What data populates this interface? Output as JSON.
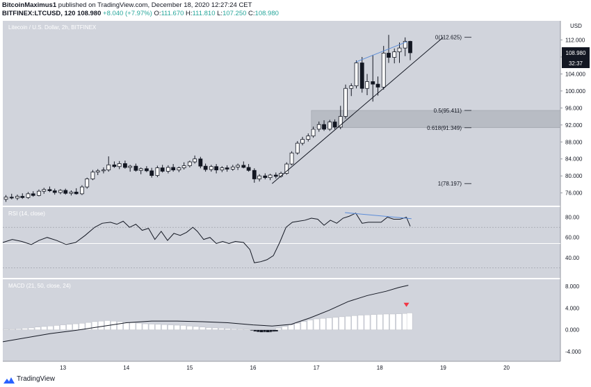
{
  "header": {
    "author": "BitcoinMaximus1",
    "published_text": "published on TradingView.com, December 18, 2020 12:27:24 CET",
    "symbol": "BITFINEX:LTCUSD, 120",
    "last": "108.980",
    "change": "+8.040 (+7.97%)",
    "open_label": "O:",
    "open": "111.670",
    "high_label": "H:",
    "high": "111.810",
    "low_label": "L:",
    "low": "107.250",
    "close_label": "C:",
    "close": "108.980"
  },
  "footer": {
    "brand": "TradingView"
  },
  "chart_data": {
    "type": "candlestick",
    "title": "Litecoin / U.S. Dollar, 2h, BITFINEX",
    "currency": "USD",
    "price_axis": {
      "ticks": [
        76,
        80,
        84,
        88,
        92,
        96,
        100,
        104,
        108,
        112
      ],
      "tick_labels": [
        "76.000",
        "80.000",
        "84.000",
        "88.000",
        "92.000",
        "96.000",
        "100.000",
        "104.000",
        "108.000",
        "112.000"
      ],
      "range": [
        73,
        116.5
      ]
    },
    "last_price_label": "108.980",
    "countdown_label": "32:37",
    "x_axis": {
      "tick_labels": [
        "13",
        "14",
        "15",
        "16",
        "17",
        "18",
        "19",
        "20"
      ],
      "tick_days": [
        13,
        14,
        15,
        16,
        17,
        18,
        19,
        20
      ],
      "range": [
        12.05,
        20.85
      ]
    },
    "fib_levels": [
      {
        "label": "0(112.625)",
        "price": 112.625
      },
      {
        "label": "0.5(95.411)",
        "price": 95.411
      },
      {
        "label": "0.618(91.349)",
        "price": 91.349
      },
      {
        "label": "1(78.197)",
        "price": 78.197
      }
    ],
    "fib_zone": {
      "from_day": 16.92,
      "top": 95.411,
      "bottom": 91.349
    },
    "support_line": {
      "x": [
        16.3,
        19.0
      ],
      "y": [
        78.197,
        112.625
      ]
    },
    "resistance_line": {
      "x": [
        17.62,
        18.43
      ],
      "y": [
        106.8,
        111.6
      ]
    },
    "candles": [
      {
        "t": 12.1,
        "o": 74.5,
        "h": 75.5,
        "l": 73.9,
        "c": 75.0
      },
      {
        "t": 12.19,
        "o": 75.0,
        "h": 75.8,
        "l": 74.5,
        "c": 74.8
      },
      {
        "t": 12.28,
        "o": 74.8,
        "h": 75.6,
        "l": 74.3,
        "c": 75.2
      },
      {
        "t": 12.36,
        "o": 75.2,
        "h": 75.9,
        "l": 74.6,
        "c": 74.9
      },
      {
        "t": 12.45,
        "o": 74.9,
        "h": 76.2,
        "l": 74.6,
        "c": 75.8
      },
      {
        "t": 12.53,
        "o": 75.8,
        "h": 76.4,
        "l": 75.1,
        "c": 75.4
      },
      {
        "t": 12.62,
        "o": 75.4,
        "h": 76.8,
        "l": 75.2,
        "c": 76.4
      },
      {
        "t": 12.7,
        "o": 76.4,
        "h": 77.2,
        "l": 75.8,
        "c": 76.8
      },
      {
        "t": 12.79,
        "o": 76.8,
        "h": 77.5,
        "l": 76.2,
        "c": 76.5
      },
      {
        "t": 12.87,
        "o": 76.5,
        "h": 77.0,
        "l": 75.6,
        "c": 76.1
      },
      {
        "t": 12.96,
        "o": 76.1,
        "h": 76.9,
        "l": 75.7,
        "c": 76.6
      },
      {
        "t": 13.04,
        "o": 76.6,
        "h": 77.0,
        "l": 75.6,
        "c": 75.9
      },
      {
        "t": 13.13,
        "o": 75.9,
        "h": 76.6,
        "l": 75.4,
        "c": 76.2
      },
      {
        "t": 13.21,
        "o": 76.2,
        "h": 77.1,
        "l": 75.6,
        "c": 75.8
      },
      {
        "t": 13.3,
        "o": 75.8,
        "h": 77.8,
        "l": 75.5,
        "c": 77.4
      },
      {
        "t": 13.38,
        "o": 77.4,
        "h": 79.6,
        "l": 77.0,
        "c": 79.3
      },
      {
        "t": 13.47,
        "o": 79.3,
        "h": 81.4,
        "l": 79.0,
        "c": 80.9
      },
      {
        "t": 13.55,
        "o": 80.9,
        "h": 81.6,
        "l": 80.2,
        "c": 81.2
      },
      {
        "t": 13.64,
        "o": 81.2,
        "h": 82.0,
        "l": 80.6,
        "c": 81.4
      },
      {
        "t": 13.72,
        "o": 81.4,
        "h": 84.6,
        "l": 81.0,
        "c": 82.6
      },
      {
        "t": 13.81,
        "o": 82.6,
        "h": 83.4,
        "l": 81.9,
        "c": 82.2
      },
      {
        "t": 13.89,
        "o": 82.2,
        "h": 83.5,
        "l": 81.6,
        "c": 82.9
      },
      {
        "t": 13.98,
        "o": 82.9,
        "h": 83.6,
        "l": 81.7,
        "c": 82.0
      },
      {
        "t": 14.06,
        "o": 82.0,
        "h": 82.6,
        "l": 81.0,
        "c": 82.3
      },
      {
        "t": 14.15,
        "o": 82.3,
        "h": 82.9,
        "l": 81.0,
        "c": 81.3
      },
      {
        "t": 14.23,
        "o": 81.3,
        "h": 82.0,
        "l": 80.4,
        "c": 81.7
      },
      {
        "t": 14.32,
        "o": 81.7,
        "h": 82.3,
        "l": 80.9,
        "c": 81.2
      },
      {
        "t": 14.4,
        "o": 81.2,
        "h": 81.9,
        "l": 79.6,
        "c": 80.1
      },
      {
        "t": 14.49,
        "o": 80.1,
        "h": 82.4,
        "l": 79.7,
        "c": 81.9
      },
      {
        "t": 14.57,
        "o": 81.9,
        "h": 82.6,
        "l": 80.8,
        "c": 81.1
      },
      {
        "t": 14.66,
        "o": 81.1,
        "h": 82.5,
        "l": 80.6,
        "c": 82.0
      },
      {
        "t": 14.74,
        "o": 82.0,
        "h": 82.8,
        "l": 81.0,
        "c": 81.4
      },
      {
        "t": 14.83,
        "o": 81.4,
        "h": 82.2,
        "l": 80.9,
        "c": 81.9
      },
      {
        "t": 14.91,
        "o": 81.9,
        "h": 83.2,
        "l": 81.5,
        "c": 82.4
      },
      {
        "t": 15.0,
        "o": 82.4,
        "h": 83.6,
        "l": 82.0,
        "c": 83.3
      },
      {
        "t": 15.08,
        "o": 83.3,
        "h": 84.8,
        "l": 82.9,
        "c": 84.0
      },
      {
        "t": 15.17,
        "o": 84.0,
        "h": 84.5,
        "l": 81.8,
        "c": 82.3
      },
      {
        "t": 15.25,
        "o": 82.3,
        "h": 82.9,
        "l": 81.0,
        "c": 81.5
      },
      {
        "t": 15.34,
        "o": 81.5,
        "h": 82.6,
        "l": 81.0,
        "c": 82.2
      },
      {
        "t": 15.42,
        "o": 82.2,
        "h": 82.8,
        "l": 80.6,
        "c": 81.4
      },
      {
        "t": 15.51,
        "o": 81.4,
        "h": 82.3,
        "l": 80.9,
        "c": 81.9
      },
      {
        "t": 15.59,
        "o": 81.9,
        "h": 82.5,
        "l": 81.0,
        "c": 81.6
      },
      {
        "t": 15.68,
        "o": 81.6,
        "h": 82.6,
        "l": 81.2,
        "c": 82.1
      },
      {
        "t": 15.76,
        "o": 82.1,
        "h": 82.9,
        "l": 81.4,
        "c": 82.5
      },
      {
        "t": 15.85,
        "o": 82.5,
        "h": 83.4,
        "l": 81.8,
        "c": 82.0
      },
      {
        "t": 15.93,
        "o": 82.0,
        "h": 82.8,
        "l": 81.0,
        "c": 81.3
      },
      {
        "t": 16.02,
        "o": 81.3,
        "h": 81.8,
        "l": 78.4,
        "c": 79.3
      },
      {
        "t": 16.1,
        "o": 79.3,
        "h": 80.4,
        "l": 78.7,
        "c": 80.0
      },
      {
        "t": 16.19,
        "o": 80.0,
        "h": 80.6,
        "l": 79.2,
        "c": 79.6
      },
      {
        "t": 16.27,
        "o": 79.6,
        "h": 80.5,
        "l": 79.0,
        "c": 80.2
      },
      {
        "t": 16.36,
        "o": 80.2,
        "h": 80.8,
        "l": 79.4,
        "c": 79.9
      },
      {
        "t": 16.44,
        "o": 79.9,
        "h": 81.0,
        "l": 79.6,
        "c": 80.6
      },
      {
        "t": 16.53,
        "o": 80.6,
        "h": 83.2,
        "l": 80.3,
        "c": 82.8
      },
      {
        "t": 16.61,
        "o": 82.8,
        "h": 85.8,
        "l": 82.5,
        "c": 85.4
      },
      {
        "t": 16.7,
        "o": 85.4,
        "h": 88.2,
        "l": 85.0,
        "c": 87.7
      },
      {
        "t": 16.78,
        "o": 87.7,
        "h": 89.2,
        "l": 87.2,
        "c": 88.6
      },
      {
        "t": 16.87,
        "o": 88.6,
        "h": 90.0,
        "l": 88.1,
        "c": 89.4
      },
      {
        "t": 16.95,
        "o": 89.4,
        "h": 91.6,
        "l": 89.0,
        "c": 91.0
      },
      {
        "t": 17.04,
        "o": 91.0,
        "h": 92.8,
        "l": 90.4,
        "c": 92.1
      },
      {
        "t": 17.12,
        "o": 92.1,
        "h": 93.1,
        "l": 90.6,
        "c": 91.0
      },
      {
        "t": 17.21,
        "o": 91.0,
        "h": 93.2,
        "l": 90.6,
        "c": 92.7
      },
      {
        "t": 17.29,
        "o": 92.7,
        "h": 93.3,
        "l": 91.0,
        "c": 91.5
      },
      {
        "t": 17.38,
        "o": 91.5,
        "h": 96.5,
        "l": 91.0,
        "c": 94.0
      },
      {
        "t": 17.46,
        "o": 94.0,
        "h": 101.5,
        "l": 93.5,
        "c": 100.6
      },
      {
        "t": 17.55,
        "o": 100.6,
        "h": 101.8,
        "l": 98.8,
        "c": 101.2
      },
      {
        "t": 17.63,
        "o": 101.2,
        "h": 107.2,
        "l": 100.6,
        "c": 106.6
      },
      {
        "t": 17.72,
        "o": 106.6,
        "h": 108.0,
        "l": 99.6,
        "c": 100.6
      },
      {
        "t": 17.8,
        "o": 100.6,
        "h": 104.0,
        "l": 99.0,
        "c": 102.2
      },
      {
        "t": 17.89,
        "o": 102.2,
        "h": 108.5,
        "l": 97.5,
        "c": 101.6
      },
      {
        "t": 17.97,
        "o": 101.6,
        "h": 103.4,
        "l": 98.9,
        "c": 100.9
      },
      {
        "t": 18.06,
        "o": 100.9,
        "h": 110.6,
        "l": 100.3,
        "c": 108.9
      },
      {
        "t": 18.14,
        "o": 108.9,
        "h": 113.2,
        "l": 106.6,
        "c": 107.9
      },
      {
        "t": 18.23,
        "o": 107.9,
        "h": 110.0,
        "l": 106.5,
        "c": 109.2
      },
      {
        "t": 18.31,
        "o": 109.2,
        "h": 111.4,
        "l": 106.6,
        "c": 110.1
      },
      {
        "t": 18.4,
        "o": 110.1,
        "h": 112.6,
        "l": 108.2,
        "c": 111.67
      },
      {
        "t": 18.48,
        "o": 111.67,
        "h": 111.81,
        "l": 107.25,
        "c": 108.98
      }
    ],
    "rsi": {
      "label": "RSI (14, close)",
      "ticks": [
        40,
        60,
        80
      ],
      "tick_labels": [
        "40.00",
        "60.00",
        "80.00"
      ],
      "range": [
        20,
        90
      ],
      "bands": [
        70,
        30
      ],
      "level_line": 54,
      "values": [
        [
          12.05,
          55
        ],
        [
          12.2,
          58
        ],
        [
          12.35,
          56
        ],
        [
          12.5,
          53
        ],
        [
          12.62,
          57
        ],
        [
          12.75,
          60
        ],
        [
          12.9,
          57
        ],
        [
          13.05,
          53
        ],
        [
          13.2,
          55
        ],
        [
          13.35,
          62
        ],
        [
          13.5,
          70
        ],
        [
          13.62,
          74
        ],
        [
          13.75,
          75
        ],
        [
          13.85,
          73
        ],
        [
          13.95,
          76
        ],
        [
          14.05,
          70
        ],
        [
          14.15,
          73
        ],
        [
          14.25,
          67
        ],
        [
          14.35,
          69
        ],
        [
          14.45,
          58
        ],
        [
          14.55,
          66
        ],
        [
          14.65,
          57
        ],
        [
          14.75,
          64
        ],
        [
          14.85,
          62
        ],
        [
          14.95,
          65
        ],
        [
          15.05,
          70
        ],
        [
          15.12,
          66
        ],
        [
          15.22,
          58
        ],
        [
          15.32,
          60
        ],
        [
          15.42,
          54
        ],
        [
          15.52,
          56
        ],
        [
          15.62,
          54
        ],
        [
          15.72,
          56
        ],
        [
          15.85,
          55
        ],
        [
          15.95,
          48
        ],
        [
          16.02,
          35
        ],
        [
          16.12,
          36
        ],
        [
          16.22,
          38
        ],
        [
          16.32,
          42
        ],
        [
          16.42,
          55
        ],
        [
          16.52,
          70
        ],
        [
          16.62,
          75
        ],
        [
          16.72,
          76
        ],
        [
          16.82,
          77
        ],
        [
          16.92,
          79
        ],
        [
          17.02,
          78
        ],
        [
          17.12,
          72
        ],
        [
          17.22,
          77
        ],
        [
          17.32,
          74
        ],
        [
          17.42,
          79
        ],
        [
          17.52,
          81
        ],
        [
          17.62,
          84
        ],
        [
          17.72,
          74
        ],
        [
          17.82,
          75
        ],
        [
          17.92,
          75
        ],
        [
          18.02,
          75
        ],
        [
          18.12,
          80
        ],
        [
          18.22,
          78
        ],
        [
          18.32,
          78
        ],
        [
          18.42,
          80
        ],
        [
          18.48,
          71
        ]
      ],
      "divergence_line": {
        "x": [
          17.45,
          18.5
        ],
        "y": [
          84.5,
          78.5
        ]
      }
    },
    "macd": {
      "label": "MACD (21, 50, close, 24)",
      "ticks": [
        -4,
        0,
        4,
        8
      ],
      "tick_labels": [
        "-4.000",
        "0.000",
        "4.000",
        "8.000"
      ],
      "range": [
        -5.8,
        9.3
      ],
      "line": [
        [
          12.05,
          -2.2
        ],
        [
          12.4,
          -1.5
        ],
        [
          12.8,
          -0.7
        ],
        [
          13.2,
          -0.1
        ],
        [
          13.6,
          0.6
        ],
        [
          14.0,
          1.3
        ],
        [
          14.4,
          1.6
        ],
        [
          14.8,
          1.6
        ],
        [
          15.2,
          1.5
        ],
        [
          15.6,
          1.3
        ],
        [
          16.0,
          0.9
        ],
        [
          16.3,
          0.7
        ],
        [
          16.6,
          1.0
        ],
        [
          16.9,
          2.2
        ],
        [
          17.2,
          3.6
        ],
        [
          17.5,
          5.2
        ],
        [
          17.8,
          6.3
        ],
        [
          18.1,
          7.1
        ],
        [
          18.3,
          7.8
        ],
        [
          18.45,
          8.2
        ]
      ],
      "histogram": [
        [
          12.1,
          0.1
        ],
        [
          12.2,
          0.15
        ],
        [
          12.3,
          0.2
        ],
        [
          12.4,
          0.3
        ],
        [
          12.5,
          0.35
        ],
        [
          12.6,
          0.5
        ],
        [
          12.7,
          0.6
        ],
        [
          12.8,
          0.7
        ],
        [
          12.9,
          0.8
        ],
        [
          13.0,
          0.9
        ],
        [
          13.1,
          1.0
        ],
        [
          13.2,
          1.1
        ],
        [
          13.3,
          1.2
        ],
        [
          13.4,
          1.35
        ],
        [
          13.5,
          1.5
        ],
        [
          13.6,
          1.6
        ],
        [
          13.7,
          1.7
        ],
        [
          13.8,
          1.6
        ],
        [
          13.9,
          1.5
        ],
        [
          14.0,
          1.4
        ],
        [
          14.1,
          1.3
        ],
        [
          14.2,
          1.2
        ],
        [
          14.3,
          1.1
        ],
        [
          14.4,
          1.05
        ],
        [
          14.5,
          1.0
        ],
        [
          14.6,
          0.95
        ],
        [
          14.7,
          0.9
        ],
        [
          14.8,
          0.85
        ],
        [
          14.9,
          0.8
        ],
        [
          15.0,
          0.7
        ],
        [
          15.1,
          0.6
        ],
        [
          15.2,
          0.5
        ],
        [
          15.3,
          0.4
        ],
        [
          15.4,
          0.35
        ],
        [
          15.5,
          0.3
        ],
        [
          15.6,
          0.25
        ],
        [
          15.7,
          0.2
        ],
        [
          15.8,
          0.15
        ],
        [
          15.9,
          0.1
        ],
        [
          16.0,
          -0.05
        ],
        [
          16.05,
          -0.3
        ],
        [
          16.1,
          -0.4
        ],
        [
          16.15,
          -0.45
        ],
        [
          16.2,
          -0.4
        ],
        [
          16.25,
          -0.45
        ],
        [
          16.3,
          -0.35
        ],
        [
          16.35,
          -0.3
        ],
        [
          16.4,
          0.3
        ],
        [
          16.5,
          0.6
        ],
        [
          16.6,
          0.9
        ],
        [
          16.7,
          1.2
        ],
        [
          16.8,
          1.5
        ],
        [
          16.9,
          1.8
        ],
        [
          17.0,
          2.0
        ],
        [
          17.1,
          2.1
        ],
        [
          17.2,
          2.2
        ],
        [
          17.3,
          2.3
        ],
        [
          17.4,
          2.4
        ],
        [
          17.5,
          2.5
        ],
        [
          17.6,
          2.6
        ],
        [
          17.7,
          2.7
        ],
        [
          17.8,
          2.75
        ],
        [
          17.9,
          2.8
        ],
        [
          18.0,
          2.85
        ],
        [
          18.1,
          2.9
        ],
        [
          18.2,
          2.9
        ],
        [
          18.3,
          2.95
        ],
        [
          18.4,
          3.0
        ],
        [
          18.47,
          3.1
        ]
      ],
      "signal_marker": {
        "t": 18.42,
        "v": 4.6
      }
    },
    "colors": {
      "background": "#d1d4dc",
      "up": "#ffffff",
      "down": "#131722",
      "fib_zone": "#b2b5be",
      "trendline": "#131722",
      "divergence": "#5b8cd8",
      "signal": "#f23645"
    }
  }
}
